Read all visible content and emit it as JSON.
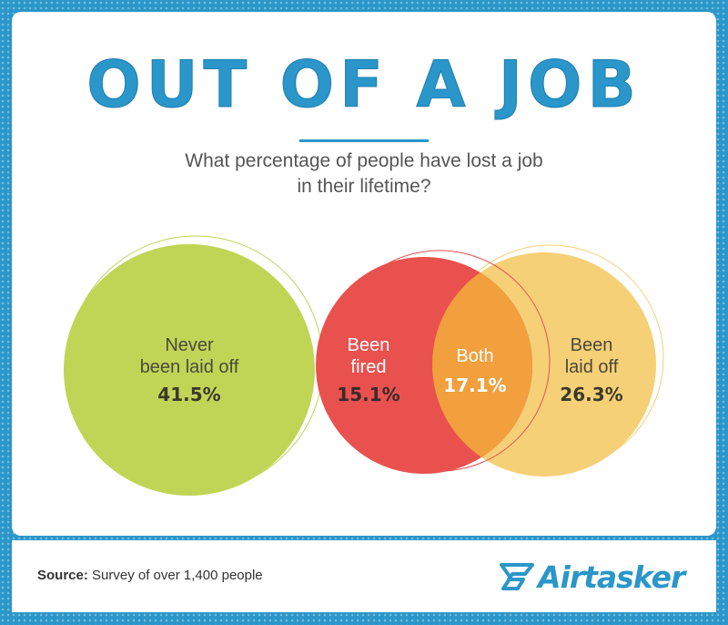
{
  "colors": {
    "background": "#2a96c9",
    "never": "#c0d556",
    "fired": "#e9514f",
    "laid_off": "#f6d077",
    "both": "#f29f3d",
    "title": "#2a96c9"
  },
  "header": {
    "title": "OUT OF A JOB",
    "subtitle_line1": "What percentage of people have lost a job",
    "subtitle_line2": "in their lifetime?"
  },
  "chart_data": {
    "type": "venn",
    "title": "OUT OF A JOB",
    "subtitle": "What percentage of people have lost a job in their lifetime?",
    "unit": "%",
    "sets": [
      {
        "key": "never",
        "label_lines": [
          "Never",
          "been laid off"
        ],
        "value": 41.5,
        "value_label": "41.5%"
      },
      {
        "key": "fired",
        "label_lines": [
          "Been",
          "fired"
        ],
        "value": 15.1,
        "value_label": "15.1%"
      },
      {
        "key": "both",
        "label_lines": [
          "Both"
        ],
        "value": 17.1,
        "value_label": "17.1%"
      },
      {
        "key": "laid_off",
        "label_lines": [
          "Been",
          "laid off"
        ],
        "value": 26.3,
        "value_label": "26.3%"
      }
    ]
  },
  "footer": {
    "source_label": "Source:",
    "source_text": " Survey of over 1,400 people",
    "brand": "Airtasker"
  }
}
